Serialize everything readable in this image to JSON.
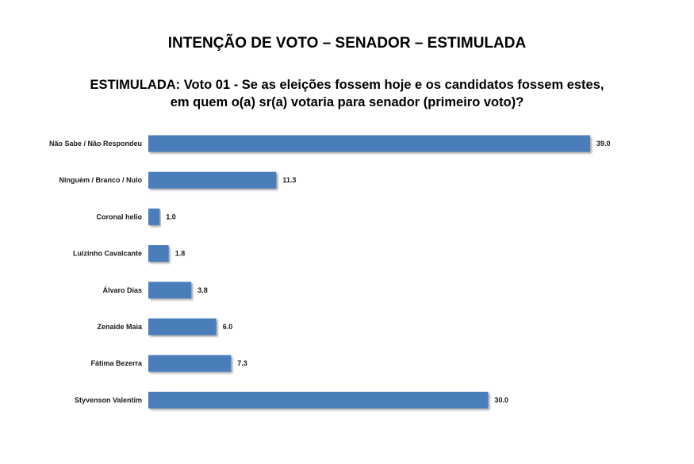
{
  "chart_data": {
    "type": "bar",
    "orientation": "horizontal",
    "title": "INTENÇÃO DE VOTO – SENADOR – ESTIMULADA",
    "subtitle": "ESTIMULADA: Voto 01 - Se as eleições fossem hoje e os candidatos fossem estes, em quem o(a) sr(a) votaria para senador (primeiro voto)?",
    "categories": [
      "Não Sabe / Não Respondeu",
      "Ninguém / Branco / Nulo",
      "Coronal helio",
      "Luizinho Cavalcante",
      "Álvaro Dias",
      "Zenaide Maia",
      "Fátima Bezerra",
      "Styvenson Valentim"
    ],
    "values": [
      39.0,
      11.3,
      1.0,
      1.8,
      3.8,
      6.0,
      7.3,
      30.0
    ],
    "value_labels": [
      "39.0",
      "11.3",
      "1.0",
      "1.8",
      "3.8",
      "6.0",
      "7.3",
      "30.0"
    ],
    "xlim": [
      0,
      39
    ],
    "grid": false,
    "legend": "none",
    "bar_color": "#4a7ebb"
  }
}
